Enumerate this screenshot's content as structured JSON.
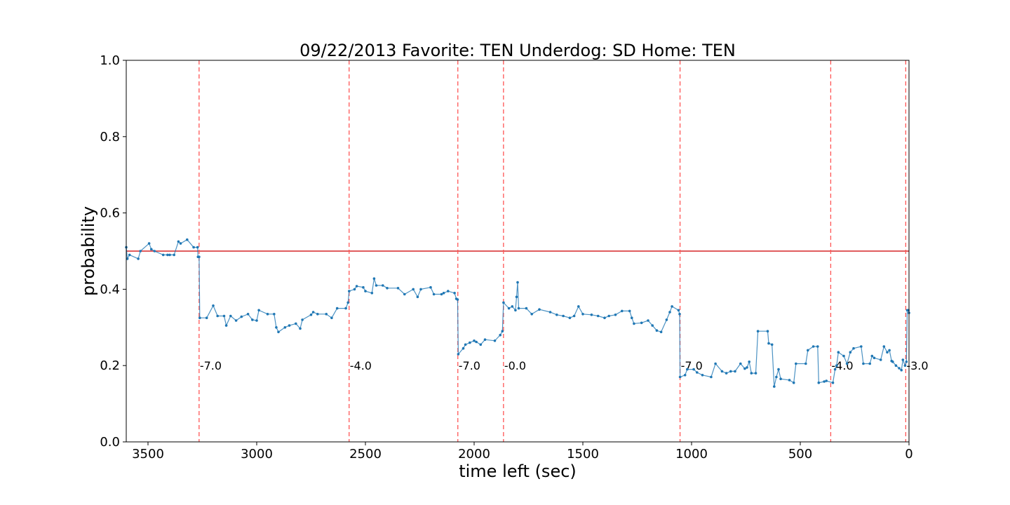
{
  "chart_data": {
    "type": "line",
    "title": "09/22/2013 Favorite: TEN Underdog: SD Home: TEN",
    "xlabel": "time left (sec)",
    "ylabel": "probability",
    "xlim": [
      3600,
      0
    ],
    "ylim": [
      0.0,
      1.0
    ],
    "x_ticks": [
      3500,
      3000,
      2500,
      2000,
      1500,
      1000,
      500,
      0
    ],
    "y_ticks": [
      0.0,
      0.2,
      0.4,
      0.6,
      0.8,
      1.0
    ],
    "x_tick_labels": [
      "3500",
      "3000",
      "2500",
      "2000",
      "1500",
      "1000",
      "500",
      "0"
    ],
    "y_tick_labels": [
      "0.0",
      "0.2",
      "0.4",
      "0.6",
      "0.8",
      "1.0"
    ],
    "grid": false,
    "line_color": "#1f77b4",
    "reference_line": {
      "y": 0.5,
      "color": "#d62728"
    },
    "score_markers": {
      "color": "#ff5555",
      "items": [
        {
          "x": 3265,
          "label": "-7.0"
        },
        {
          "x": 2575,
          "label": "-4.0"
        },
        {
          "x": 2075,
          "label": "-7.0"
        },
        {
          "x": 1865,
          "label": "-0.0"
        },
        {
          "x": 1053,
          "label": "-7.0"
        },
        {
          "x": 360,
          "label": "-4.0"
        },
        {
          "x": 15,
          "label": "-3.0"
        }
      ]
    },
    "series": [
      {
        "points": [
          [
            3600,
            0.51
          ],
          [
            3595,
            0.48
          ],
          [
            3585,
            0.49
          ],
          [
            3545,
            0.48
          ],
          [
            3535,
            0.5
          ],
          [
            3495,
            0.52
          ],
          [
            3485,
            0.505
          ],
          [
            3470,
            0.5
          ],
          [
            3430,
            0.49
          ],
          [
            3410,
            0.49
          ],
          [
            3400,
            0.49
          ],
          [
            3380,
            0.49
          ],
          [
            3360,
            0.525
          ],
          [
            3350,
            0.52
          ],
          [
            3320,
            0.53
          ],
          [
            3290,
            0.51
          ],
          [
            3272,
            0.51
          ],
          [
            3270,
            0.485
          ],
          [
            3265,
            0.485
          ],
          [
            3262,
            0.325
          ],
          [
            3230,
            0.325
          ],
          [
            3200,
            0.357
          ],
          [
            3180,
            0.33
          ],
          [
            3150,
            0.33
          ],
          [
            3140,
            0.305
          ],
          [
            3120,
            0.33
          ],
          [
            3095,
            0.318
          ],
          [
            3070,
            0.328
          ],
          [
            3040,
            0.335
          ],
          [
            3020,
            0.32
          ],
          [
            3000,
            0.318
          ],
          [
            2990,
            0.345
          ],
          [
            2950,
            0.335
          ],
          [
            2920,
            0.335
          ],
          [
            2910,
            0.3
          ],
          [
            2900,
            0.288
          ],
          [
            2870,
            0.3
          ],
          [
            2850,
            0.305
          ],
          [
            2820,
            0.31
          ],
          [
            2800,
            0.297
          ],
          [
            2790,
            0.32
          ],
          [
            2750,
            0.333
          ],
          [
            2740,
            0.34
          ],
          [
            2720,
            0.335
          ],
          [
            2680,
            0.335
          ],
          [
            2655,
            0.325
          ],
          [
            2630,
            0.35
          ],
          [
            2590,
            0.35
          ],
          [
            2580,
            0.365
          ],
          [
            2575,
            0.395
          ],
          [
            2550,
            0.4
          ],
          [
            2540,
            0.408
          ],
          [
            2510,
            0.405
          ],
          [
            2500,
            0.395
          ],
          [
            2470,
            0.39
          ],
          [
            2460,
            0.428
          ],
          [
            2450,
            0.41
          ],
          [
            2420,
            0.41
          ],
          [
            2400,
            0.403
          ],
          [
            2350,
            0.403
          ],
          [
            2320,
            0.387
          ],
          [
            2280,
            0.4
          ],
          [
            2260,
            0.38
          ],
          [
            2245,
            0.4
          ],
          [
            2200,
            0.405
          ],
          [
            2185,
            0.387
          ],
          [
            2150,
            0.387
          ],
          [
            2140,
            0.39
          ],
          [
            2120,
            0.395
          ],
          [
            2090,
            0.39
          ],
          [
            2082,
            0.375
          ],
          [
            2076,
            0.373
          ],
          [
            2073,
            0.23
          ],
          [
            2050,
            0.245
          ],
          [
            2040,
            0.255
          ],
          [
            2020,
            0.26
          ],
          [
            2000,
            0.265
          ],
          [
            1990,
            0.262
          ],
          [
            1970,
            0.255
          ],
          [
            1950,
            0.268
          ],
          [
            1905,
            0.265
          ],
          [
            1880,
            0.28
          ],
          [
            1870,
            0.29
          ],
          [
            1865,
            0.365
          ],
          [
            1840,
            0.35
          ],
          [
            1825,
            0.355
          ],
          [
            1810,
            0.345
          ],
          [
            1805,
            0.38
          ],
          [
            1800,
            0.418
          ],
          [
            1795,
            0.35
          ],
          [
            1760,
            0.35
          ],
          [
            1735,
            0.335
          ],
          [
            1700,
            0.347
          ],
          [
            1650,
            0.34
          ],
          [
            1620,
            0.333
          ],
          [
            1590,
            0.33
          ],
          [
            1560,
            0.325
          ],
          [
            1540,
            0.33
          ],
          [
            1520,
            0.355
          ],
          [
            1500,
            0.335
          ],
          [
            1460,
            0.333
          ],
          [
            1430,
            0.33
          ],
          [
            1400,
            0.325
          ],
          [
            1380,
            0.33
          ],
          [
            1350,
            0.333
          ],
          [
            1320,
            0.343
          ],
          [
            1285,
            0.343
          ],
          [
            1275,
            0.325
          ],
          [
            1265,
            0.31
          ],
          [
            1230,
            0.312
          ],
          [
            1200,
            0.318
          ],
          [
            1180,
            0.305
          ],
          [
            1160,
            0.292
          ],
          [
            1140,
            0.288
          ],
          [
            1115,
            0.32
          ],
          [
            1100,
            0.34
          ],
          [
            1090,
            0.355
          ],
          [
            1060,
            0.345
          ],
          [
            1055,
            0.335
          ],
          [
            1053,
            0.17
          ],
          [
            1030,
            0.175
          ],
          [
            1020,
            0.19
          ],
          [
            990,
            0.19
          ],
          [
            975,
            0.182
          ],
          [
            950,
            0.175
          ],
          [
            910,
            0.17
          ],
          [
            890,
            0.205
          ],
          [
            860,
            0.185
          ],
          [
            840,
            0.18
          ],
          [
            820,
            0.185
          ],
          [
            800,
            0.185
          ],
          [
            775,
            0.205
          ],
          [
            755,
            0.192
          ],
          [
            745,
            0.195
          ],
          [
            735,
            0.21
          ],
          [
            725,
            0.18
          ],
          [
            705,
            0.18
          ],
          [
            695,
            0.29
          ],
          [
            650,
            0.29
          ],
          [
            645,
            0.258
          ],
          [
            630,
            0.255
          ],
          [
            620,
            0.145
          ],
          [
            610,
            0.17
          ],
          [
            600,
            0.19
          ],
          [
            590,
            0.165
          ],
          [
            550,
            0.162
          ],
          [
            530,
            0.155
          ],
          [
            520,
            0.205
          ],
          [
            475,
            0.205
          ],
          [
            465,
            0.24
          ],
          [
            440,
            0.25
          ],
          [
            420,
            0.25
          ],
          [
            415,
            0.155
          ],
          [
            390,
            0.158
          ],
          [
            380,
            0.16
          ],
          [
            350,
            0.155
          ],
          [
            340,
            0.19
          ],
          [
            333,
            0.2
          ],
          [
            325,
            0.235
          ],
          [
            300,
            0.225
          ],
          [
            285,
            0.205
          ],
          [
            270,
            0.235
          ],
          [
            255,
            0.245
          ],
          [
            220,
            0.25
          ],
          [
            210,
            0.205
          ],
          [
            180,
            0.205
          ],
          [
            170,
            0.225
          ],
          [
            160,
            0.22
          ],
          [
            130,
            0.215
          ],
          [
            115,
            0.25
          ],
          [
            100,
            0.235
          ],
          [
            90,
            0.24
          ],
          [
            80,
            0.212
          ],
          [
            75,
            0.21
          ],
          [
            60,
            0.2
          ],
          [
            45,
            0.193
          ],
          [
            35,
            0.188
          ],
          [
            28,
            0.215
          ],
          [
            18,
            0.2
          ],
          [
            12,
            0.21
          ],
          [
            8,
            0.345
          ],
          [
            3,
            0.345
          ],
          [
            0,
            0.338
          ]
        ]
      }
    ]
  }
}
